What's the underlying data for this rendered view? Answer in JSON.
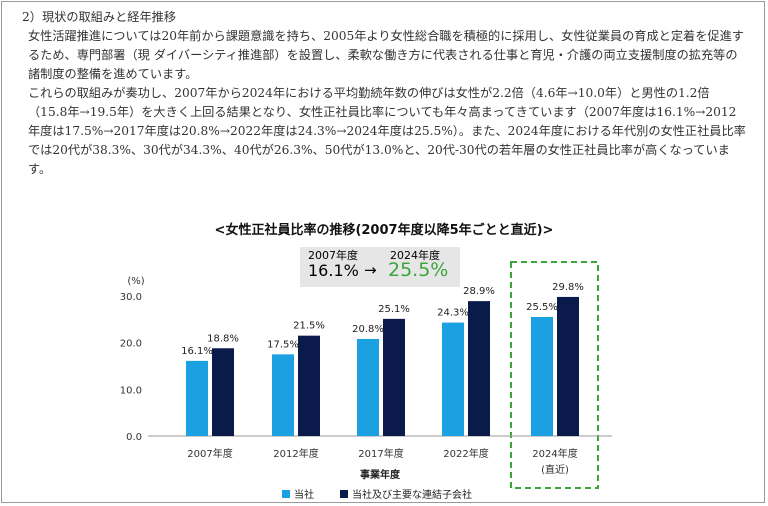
{
  "text": {
    "heading": "2）現状の取組みと経年推移",
    "para1": "女性活躍推進については20年前から課題意識を持ち、2005年より女性総合職を積極的に採用し、女性従業員の育成と定着を促進するため、専門部署（現 ダイバーシティ推進部）を設置し、柔軟な働き方に代表される仕事と育児・介護の両立支援制度の拡充等の諸制度の整備を進めています。",
    "para2": "これらの取組みが奏功し、2007年から2024年における平均勤続年数の伸びは女性が2.2倍（4.6年→10.0年）と男性の1.2倍（15.8年→19.5年）を大きく上回る結果となり、女性正社員比率についても年々高まってきています（2007年度は16.1%→2012年度は17.5%→2017年度は20.8%→2022年度は24.3%→2024年度は25.5%）。また、2024年度における年代別の女性正社員比率では20代が38.3%、30代が34.3%、40代が26.3%、50代が13.0%と、20代-30代の若年層の女性正社員比率が高くなっています。"
  },
  "callout": {
    "from_label": "2007年度",
    "from_value": "16.1%",
    "arrow": "→",
    "to_label": "2024年度",
    "to_value": "25.5%"
  },
  "colors": {
    "series1": "#1ba1e2",
    "series2": "#0a1a4a",
    "highlight": "#3aa53a"
  },
  "chart_data": {
    "type": "bar",
    "title": "<女性正社員比率の推移(2007年度以降5年ごとと直近)>",
    "ylabel": "(%)",
    "xlabel": "事業年度",
    "ylim": [
      0,
      30
    ],
    "yticks": [
      "0.0",
      "10.0",
      "20.0",
      "30.0"
    ],
    "categories": [
      "2007年度",
      "2012年度",
      "2017年度",
      "2022年度",
      "2024年度"
    ],
    "highlight_sub": "(直近)",
    "series": [
      {
        "name": "当社",
        "values": [
          16.1,
          17.5,
          20.8,
          24.3,
          25.5
        ],
        "labels": [
          "16.1%",
          "17.5%",
          "20.8%",
          "24.3%",
          "25.5%"
        ]
      },
      {
        "name": "当社及び主要な連結子会社",
        "values": [
          18.8,
          21.5,
          25.1,
          28.9,
          29.8
        ],
        "labels": [
          "18.8%",
          "21.5%",
          "25.1%",
          "28.9%",
          "29.8%"
        ]
      }
    ]
  }
}
